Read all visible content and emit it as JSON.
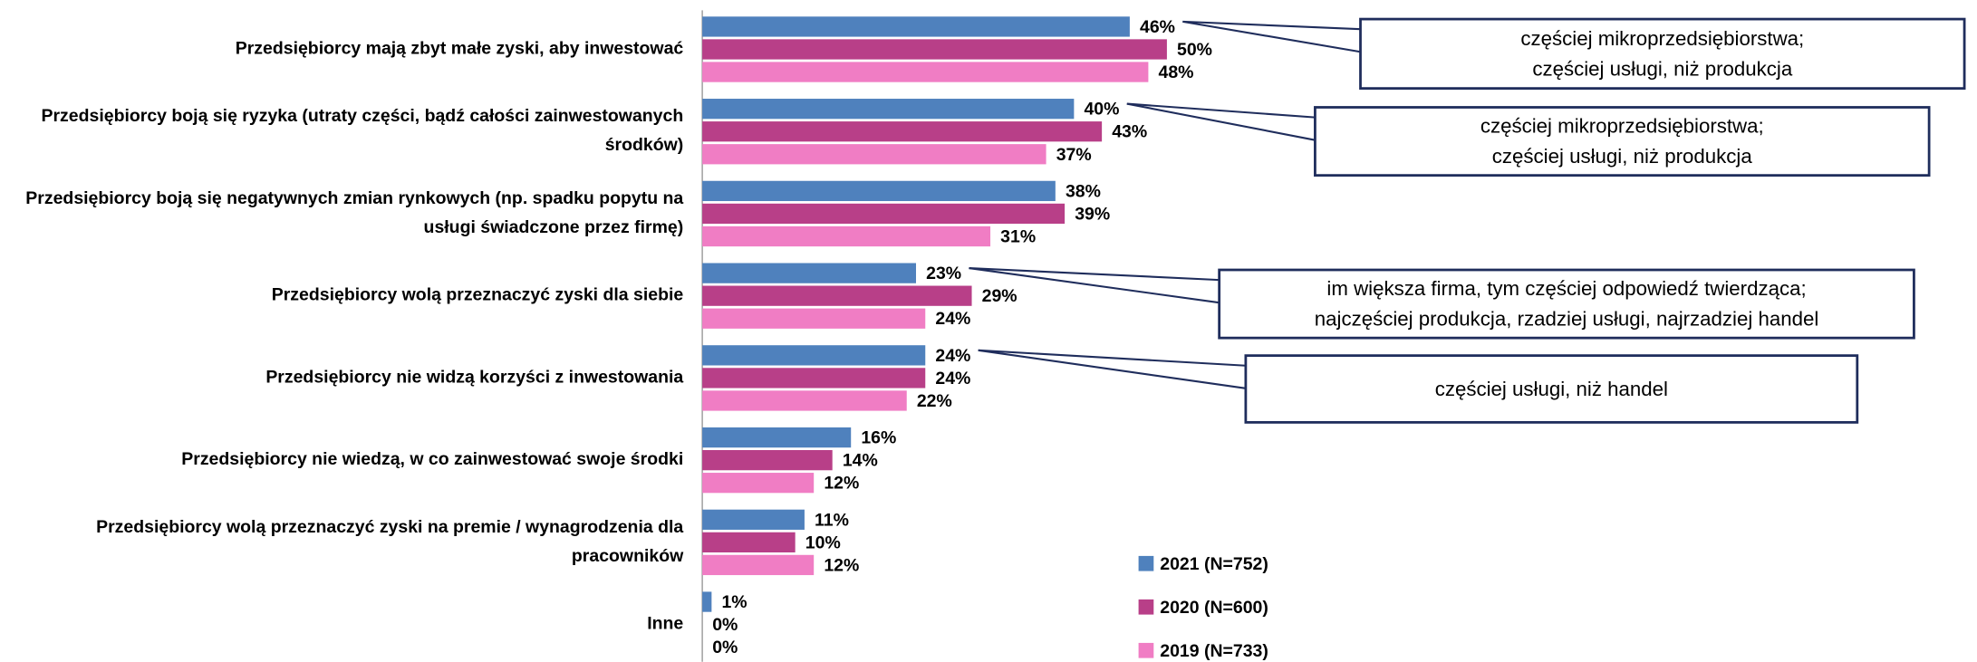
{
  "chart_data": {
    "type": "hbar",
    "categories": [
      "Przedsiębiorcy mają zbyt małe zyski, aby inwestować",
      "Przedsiębiorcy boją się ryzyka (utraty części, bądź całości zainwestowanych środków)",
      "Przedsiębiorcy boją się negatywnych zmian rynkowych (np. spadku popytu na usługi świadczone przez firmę)",
      "Przedsiębiorcy wolą przeznaczyć zyski dla siebie",
      "Przedsiębiorcy nie widzą korzyści z inwestowania",
      "Przedsiębiorcy nie wiedzą, w co zainwestować swoje środki",
      "Przedsiębiorcy wolą przeznaczyć zyski na premie / wynagrodzenia dla pracowników",
      "Inne"
    ],
    "series": [
      {
        "name": "2021 (N=752)",
        "color": "#4f81bd",
        "values": [
          46,
          40,
          38,
          23,
          24,
          16,
          11,
          1
        ],
        "value_labels": [
          "46%",
          "40%",
          "38%",
          "23%",
          "24%",
          "16%",
          "11%",
          "1%"
        ]
      },
      {
        "name": "2020 (N=600)",
        "color": "#b83f88",
        "values": [
          50,
          43,
          39,
          29,
          24,
          14,
          10,
          0
        ],
        "value_labels": [
          "50%",
          "43%",
          "39%",
          "29%",
          "24%",
          "14%",
          "10%",
          "0%"
        ]
      },
      {
        "name": "2019 (N=733)",
        "color": "#f07dc4",
        "values": [
          48,
          37,
          31,
          24,
          22,
          12,
          12,
          0
        ],
        "value_labels": [
          "48%",
          "37%",
          "31%",
          "24%",
          "22%",
          "12%",
          "12%",
          "0%"
        ]
      }
    ],
    "xlim": [
      0,
      100
    ],
    "annotations": [
      {
        "lines": [
          "częściej mikroprzedsiębiorstwa;",
          "częściej usługi, niż produkcja"
        ]
      },
      {
        "lines": [
          "częściej mikroprzedsiębiorstwa;",
          "częściej usługi, niż produkcja"
        ]
      },
      {
        "lines": [
          "im większa firma, tym częściej odpowiedź twierdząca;",
          "najczęściej produkcja, rzadziej usługi, najrzadziej handel"
        ]
      },
      {
        "lines": [
          "częściej usługi, niż handel"
        ]
      }
    ]
  }
}
